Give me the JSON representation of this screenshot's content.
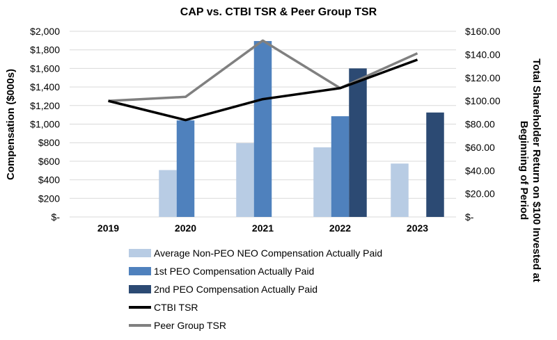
{
  "chart_data": {
    "type": "bar",
    "title": "CAP vs. CTBI TSR & Peer Group TSR",
    "ylabel": "Compensation ($000s)",
    "y2label_line1": "Total Shareholder Return on $100 Invested at",
    "y2label_line2": "Beginning of Period",
    "categories": [
      "2019",
      "2020",
      "2021",
      "2022",
      "2023"
    ],
    "ylim": [
      0,
      2000
    ],
    "y2lim": [
      0,
      160
    ],
    "y_ticks": [
      "$-",
      "$200",
      "$400",
      "$600",
      "$800",
      "$1,000",
      "$1,200",
      "$1,400",
      "$1,600",
      "$1,800",
      "$2,000"
    ],
    "y2_ticks": [
      "$-",
      "$20.00",
      "$40.00",
      "$60.00",
      "$80.00",
      "$100.00",
      "$120.00",
      "$140.00",
      "$160.00"
    ],
    "grid": true,
    "legend_position": "bottom",
    "series": [
      {
        "name": "Average Non-PEO NEO Compensation Actually Paid",
        "kind": "bar",
        "color": "#b8cce4",
        "values": [
          null,
          505,
          795,
          750,
          575
        ]
      },
      {
        "name": "1st PEO Compensation Actually Paid",
        "kind": "bar",
        "color": "#4f81bd",
        "values": [
          null,
          1040,
          1895,
          1085,
          null
        ]
      },
      {
        "name": "2nd PEO Compensation Actually Paid",
        "kind": "bar",
        "color": "#2c4a73",
        "values": [
          null,
          null,
          null,
          1600,
          1125
        ]
      },
      {
        "name": "CTBI TSR",
        "kind": "line",
        "axis": "right",
        "color": "#000000",
        "values": [
          100.0,
          83.5,
          101.5,
          111.0,
          135.5
        ]
      },
      {
        "name": "Peer Group TSR",
        "kind": "line",
        "axis": "right",
        "color": "#808080",
        "values": [
          100.0,
          103.5,
          152.0,
          111.0,
          141.0
        ]
      }
    ]
  }
}
